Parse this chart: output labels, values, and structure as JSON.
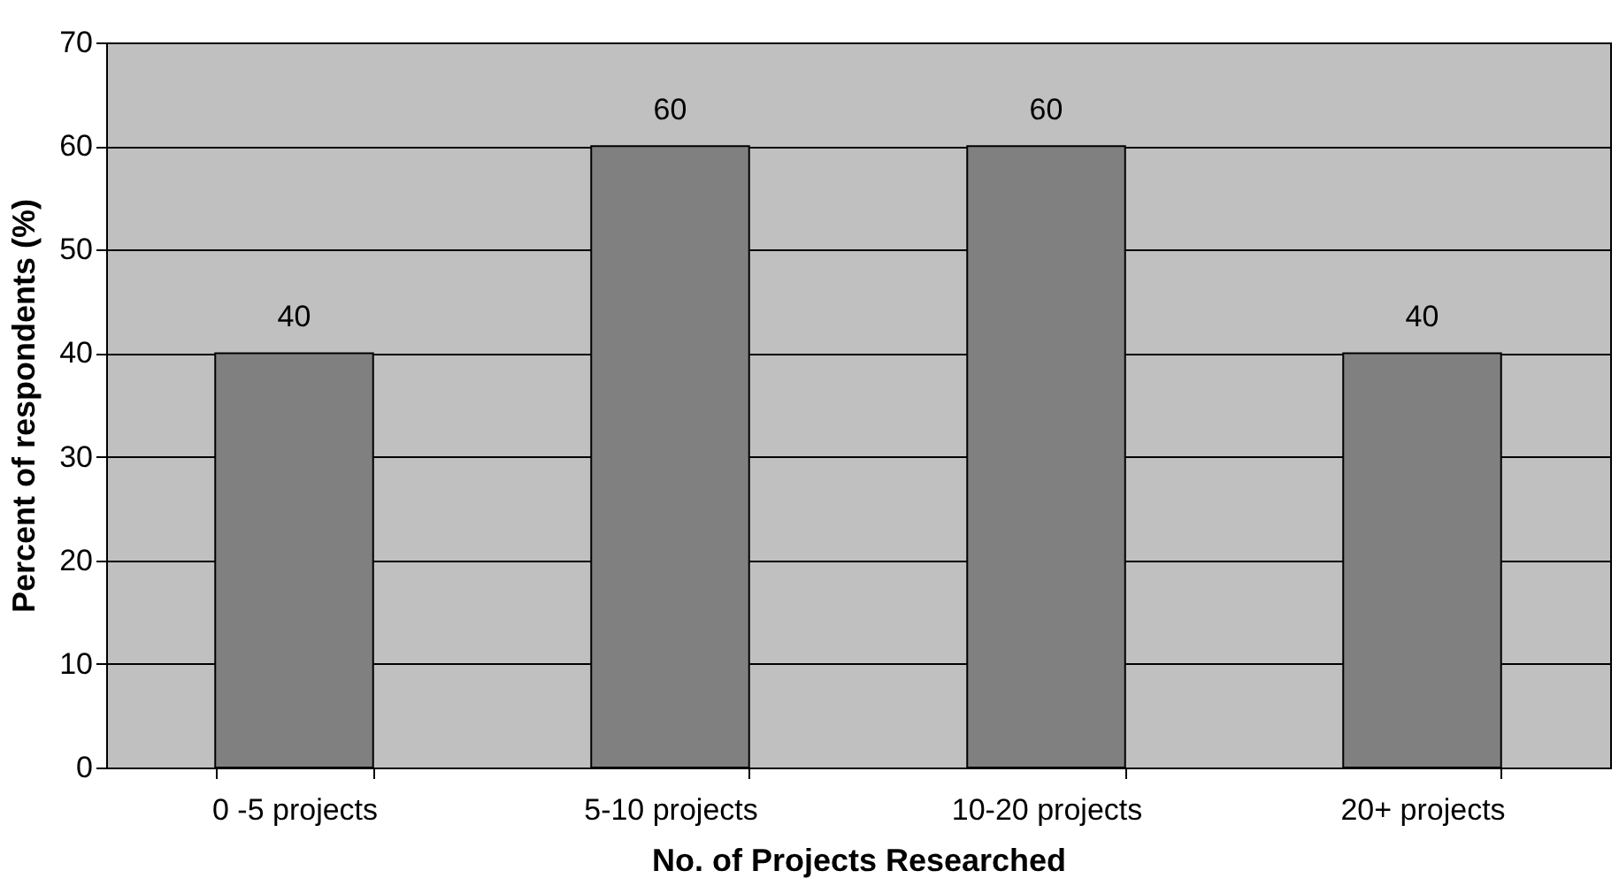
{
  "chart_data": {
    "type": "bar",
    "xlabel": "No. of Projects Researched",
    "ylabel": "Percent of respondents (%)",
    "categories": [
      "0 -5 projects",
      "5-10 projects",
      "10-20 projects",
      "20+ projects"
    ],
    "values": [
      40,
      60,
      60,
      40
    ],
    "color": "#808080",
    "ylim": [
      0,
      70
    ],
    "yticks": [
      0,
      10,
      20,
      30,
      40,
      50,
      60,
      70
    ],
    "grid": "y",
    "data_labels": true
  }
}
